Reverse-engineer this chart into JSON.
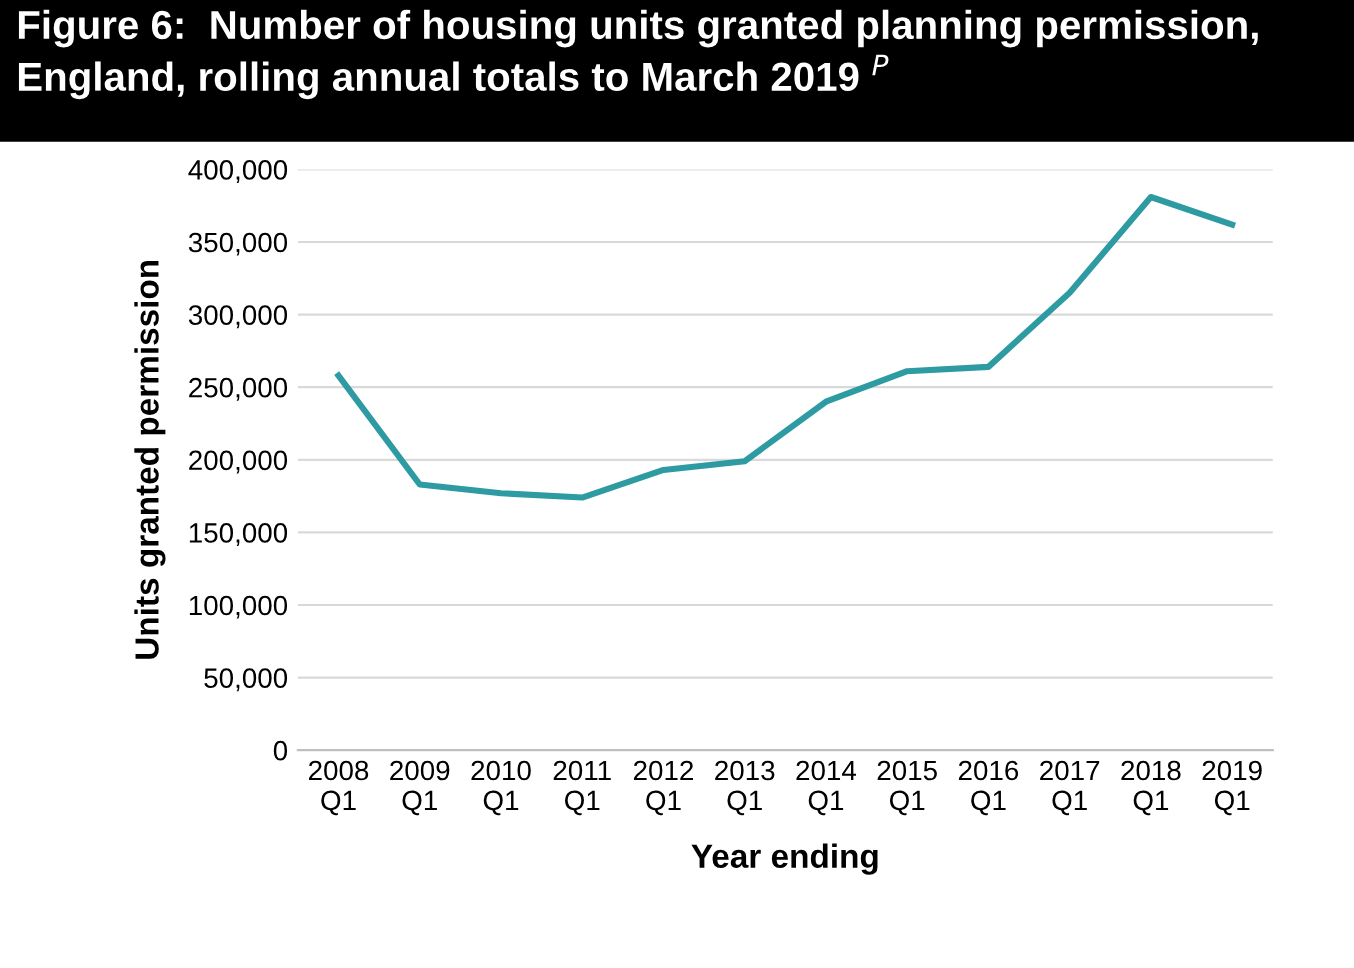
{
  "chart_data": {
    "type": "line",
    "title": "Figure 6:  Number of housing units granted planning permission, England, rolling annual totals to March 2019 $^{P}$",
    "xlabel": "Year ending",
    "ylabel": "Units granted permission",
    "categories": [
      "2008\nQ1",
      "2009\nQ1",
      "2010\nQ1",
      "2011\nQ1",
      "2012\nQ1",
      "2013\nQ1",
      "2014\nQ1",
      "2015\nQ1",
      "2016\nQ1",
      "2017\nQ1",
      "2018\nQ1",
      "2019\nQ1"
    ],
    "series": [
      {
        "color": "#2e9ba3",
        "values": [
          258000,
          183000,
          177000,
          174000,
          193000,
          199000,
          240000,
          261000,
          264000,
          315000,
          381000,
          362000
        ]
      }
    ],
    "ylim": [
      0,
      400000
    ],
    "yticks": [
      {
        "value": 0,
        "label": "0"
      },
      {
        "value": 50000,
        "label": "50,000"
      },
      {
        "value": 100000,
        "label": "100,000"
      },
      {
        "value": 150000,
        "label": "150,000"
      },
      {
        "value": 200000,
        "label": "200,000"
      },
      {
        "value": 250000,
        "label": "250,000"
      },
      {
        "value": 300000,
        "label": "300,000"
      },
      {
        "value": 350000,
        "label": "350,000"
      },
      {
        "value": 400000,
        "label": "400,000"
      }
    ],
    "grid": "y",
    "marker": "none",
    "line_style": "solid"
  }
}
